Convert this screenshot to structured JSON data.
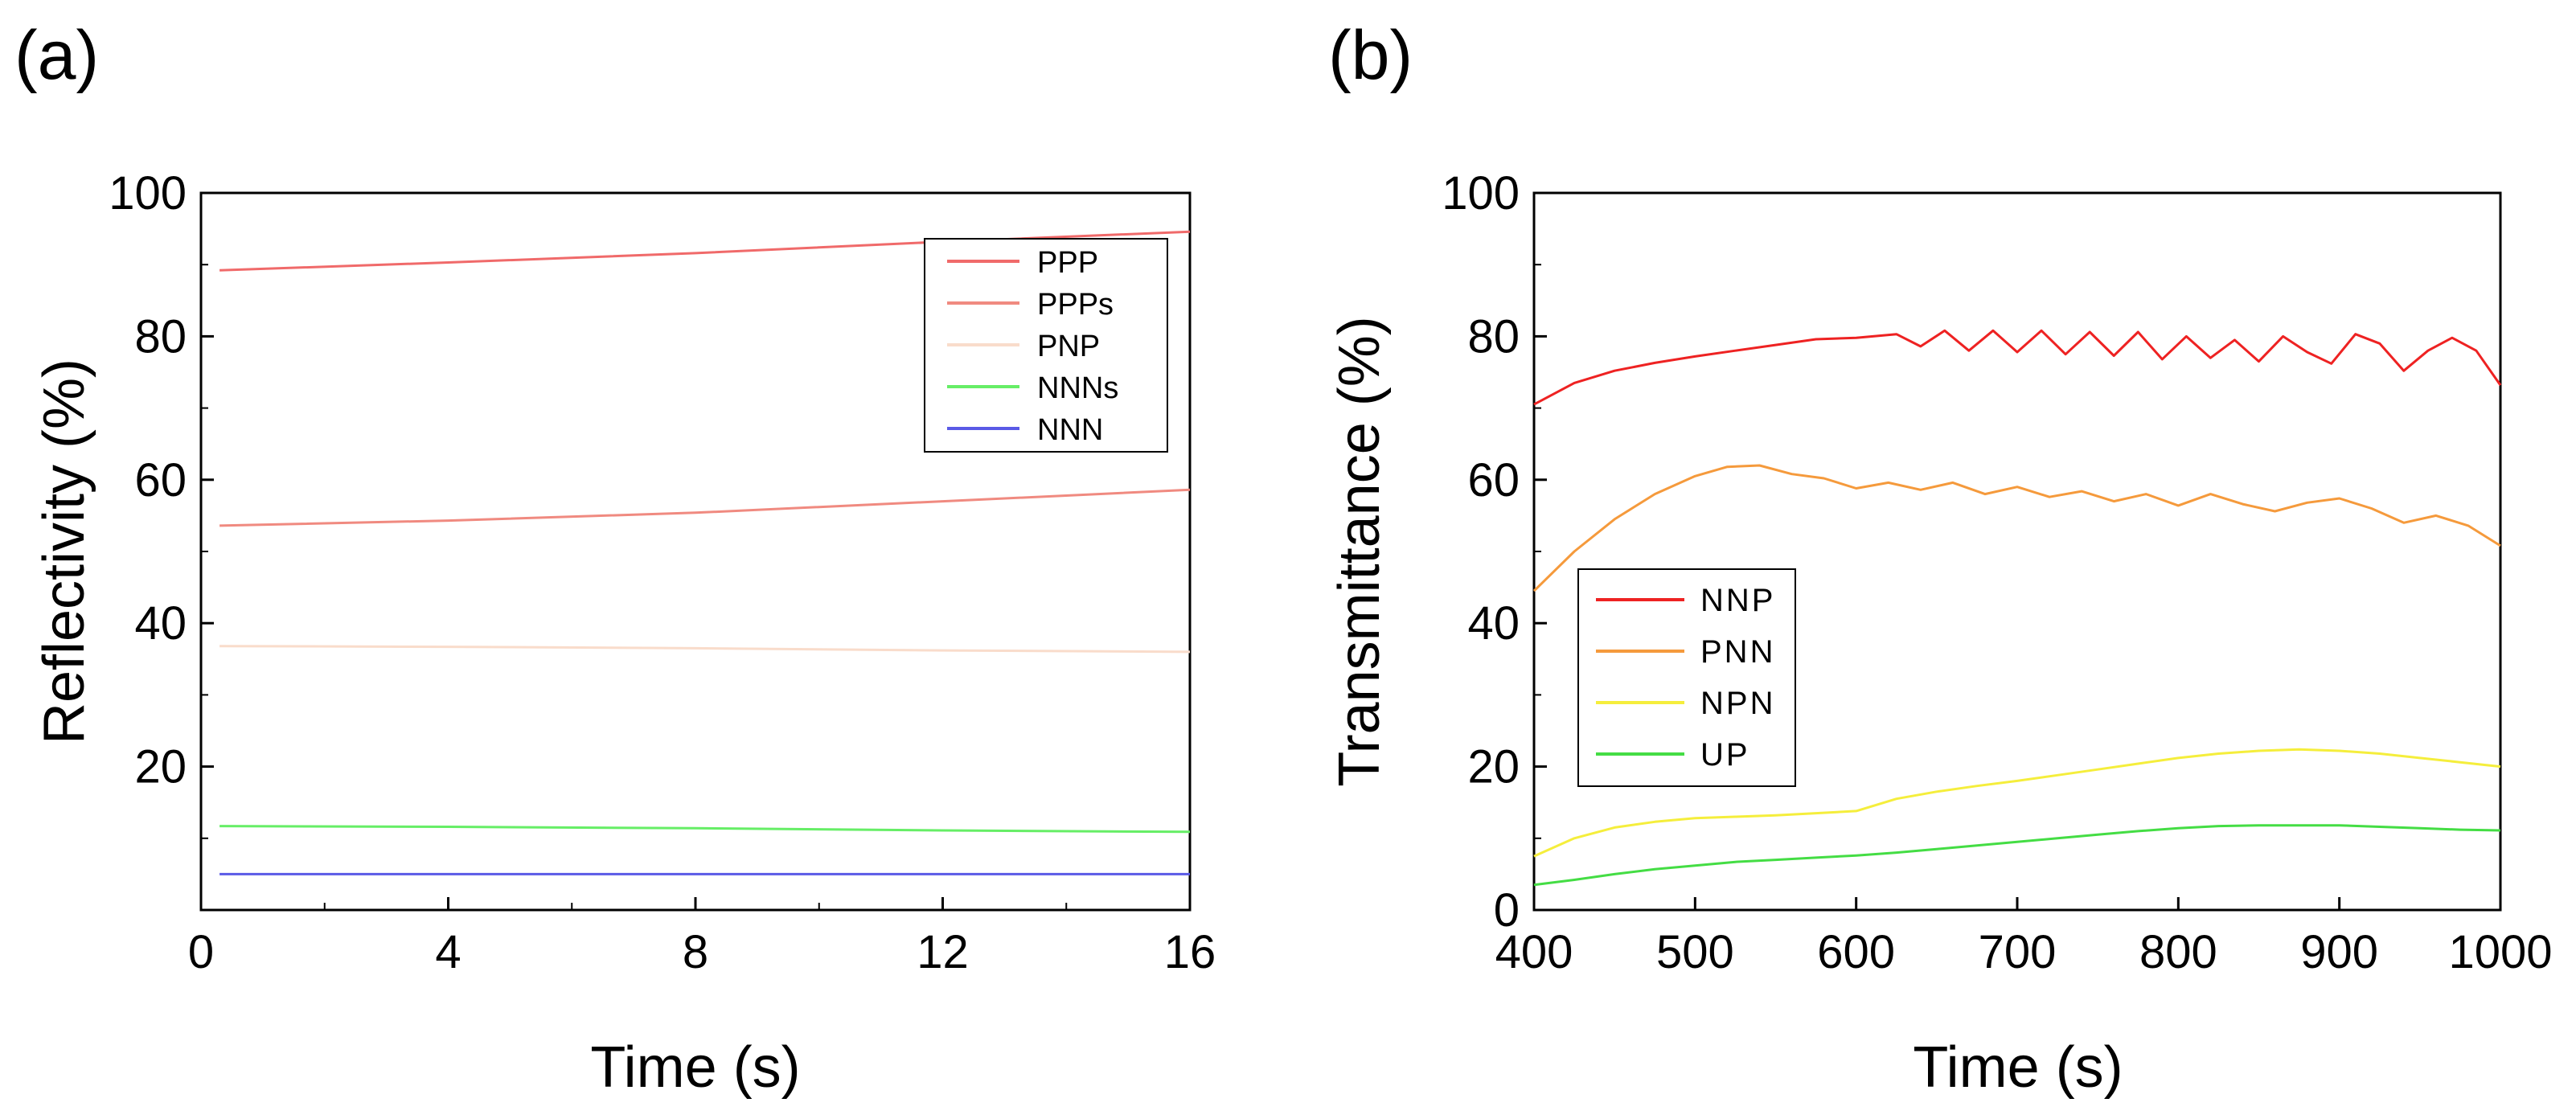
{
  "chart_data": [
    {
      "panel": "(a)",
      "type": "line",
      "xlabel": "Time (s)",
      "ylabel": "Reflectivity (%)",
      "xlim": [
        0,
        16
      ],
      "ylim": [
        0,
        100
      ],
      "xticks": [
        0,
        4,
        8,
        12,
        16
      ],
      "yticks": [
        20,
        40,
        60,
        80,
        100
      ],
      "legend_position": "top-right",
      "series": [
        {
          "name": "PPP",
          "color": "#f06a6a",
          "x": [
            0.3,
            4,
            8,
            12,
            16
          ],
          "y": [
            89.2,
            90.3,
            91.6,
            93.2,
            94.6
          ]
        },
        {
          "name": "PPPs",
          "color": "#f08a80",
          "x": [
            0.3,
            4,
            8,
            12,
            16
          ],
          "y": [
            53.6,
            54.3,
            55.4,
            57.0,
            58.6
          ]
        },
        {
          "name": "PNP",
          "color": "#f9dccb",
          "x": [
            0.3,
            4,
            8,
            12,
            16
          ],
          "y": [
            36.8,
            36.7,
            36.5,
            36.2,
            36.0
          ]
        },
        {
          "name": "NNNs",
          "color": "#66ee66",
          "x": [
            0.3,
            4,
            8,
            12,
            16
          ],
          "y": [
            11.7,
            11.6,
            11.4,
            11.1,
            10.9
          ]
        },
        {
          "name": "NNN",
          "color": "#5a5ae6",
          "x": [
            0.3,
            4,
            8,
            12,
            16
          ],
          "y": [
            5.0,
            5.0,
            5.0,
            5.0,
            5.0
          ]
        }
      ]
    },
    {
      "panel": "(b)",
      "type": "line",
      "xlabel": "Time (s)",
      "ylabel": "Transmittance (%)",
      "xlim": [
        400,
        1000
      ],
      "ylim": [
        0,
        100
      ],
      "xticks": [
        400,
        500,
        600,
        700,
        800,
        900,
        1000
      ],
      "yticks": [
        0,
        20,
        40,
        60,
        80,
        100
      ],
      "legend_position": "middle-left",
      "series": [
        {
          "name": "NNP",
          "color": "#ee2222",
          "x": [
            400,
            425,
            450,
            475,
            500,
            525,
            550,
            575,
            600,
            625,
            640,
            655,
            670,
            685,
            700,
            715,
            730,
            745,
            760,
            775,
            790,
            805,
            820,
            835,
            850,
            865,
            880,
            895,
            910,
            925,
            940,
            955,
            970,
            985,
            1000
          ],
          "y": [
            70.5,
            73.5,
            75.2,
            76.3,
            77.2,
            78.0,
            78.8,
            79.6,
            79.8,
            80.3,
            78.6,
            80.8,
            78.0,
            80.8,
            77.8,
            80.8,
            77.5,
            80.6,
            77.3,
            80.6,
            76.8,
            80.0,
            77.0,
            79.5,
            76.5,
            80.0,
            77.8,
            76.2,
            80.3,
            79.0,
            75.2,
            78.0,
            79.8,
            78.0,
            73.2
          ]
        },
        {
          "name": "PNN",
          "color": "#f59a3c",
          "x": [
            400,
            425,
            450,
            475,
            500,
            520,
            540,
            560,
            580,
            600,
            620,
            640,
            660,
            680,
            700,
            720,
            740,
            760,
            780,
            800,
            820,
            840,
            860,
            880,
            900,
            920,
            940,
            960,
            980,
            1000
          ],
          "y": [
            44.5,
            50.0,
            54.5,
            58.0,
            60.5,
            61.8,
            62.0,
            60.8,
            60.2,
            58.8,
            59.6,
            58.6,
            59.6,
            58.0,
            59.0,
            57.6,
            58.4,
            57.0,
            58.0,
            56.4,
            58.0,
            56.6,
            55.6,
            56.8,
            57.4,
            56.0,
            54.0,
            55.0,
            53.6,
            50.8
          ]
        },
        {
          "name": "NPN",
          "color": "#f5ee3c",
          "x": [
            400,
            425,
            450,
            475,
            500,
            525,
            550,
            575,
            600,
            625,
            650,
            675,
            700,
            725,
            750,
            775,
            800,
            825,
            850,
            875,
            900,
            925,
            950,
            975,
            1000
          ],
          "y": [
            7.5,
            10.0,
            11.5,
            12.3,
            12.8,
            13.0,
            13.2,
            13.5,
            13.8,
            15.5,
            16.5,
            17.3,
            18.0,
            18.8,
            19.6,
            20.4,
            21.2,
            21.8,
            22.2,
            22.4,
            22.2,
            21.8,
            21.2,
            20.6,
            20.0
          ]
        },
        {
          "name": "UP",
          "color": "#44dd44",
          "x": [
            400,
            425,
            450,
            475,
            500,
            525,
            550,
            575,
            600,
            625,
            650,
            675,
            700,
            725,
            750,
            775,
            800,
            825,
            850,
            875,
            900,
            925,
            950,
            975,
            1000
          ],
          "y": [
            3.5,
            4.2,
            5.0,
            5.7,
            6.2,
            6.7,
            7.0,
            7.3,
            7.6,
            8.0,
            8.5,
            9.0,
            9.5,
            10.0,
            10.5,
            11.0,
            11.4,
            11.7,
            11.8,
            11.8,
            11.8,
            11.6,
            11.4,
            11.2,
            11.1
          ]
        }
      ]
    }
  ]
}
